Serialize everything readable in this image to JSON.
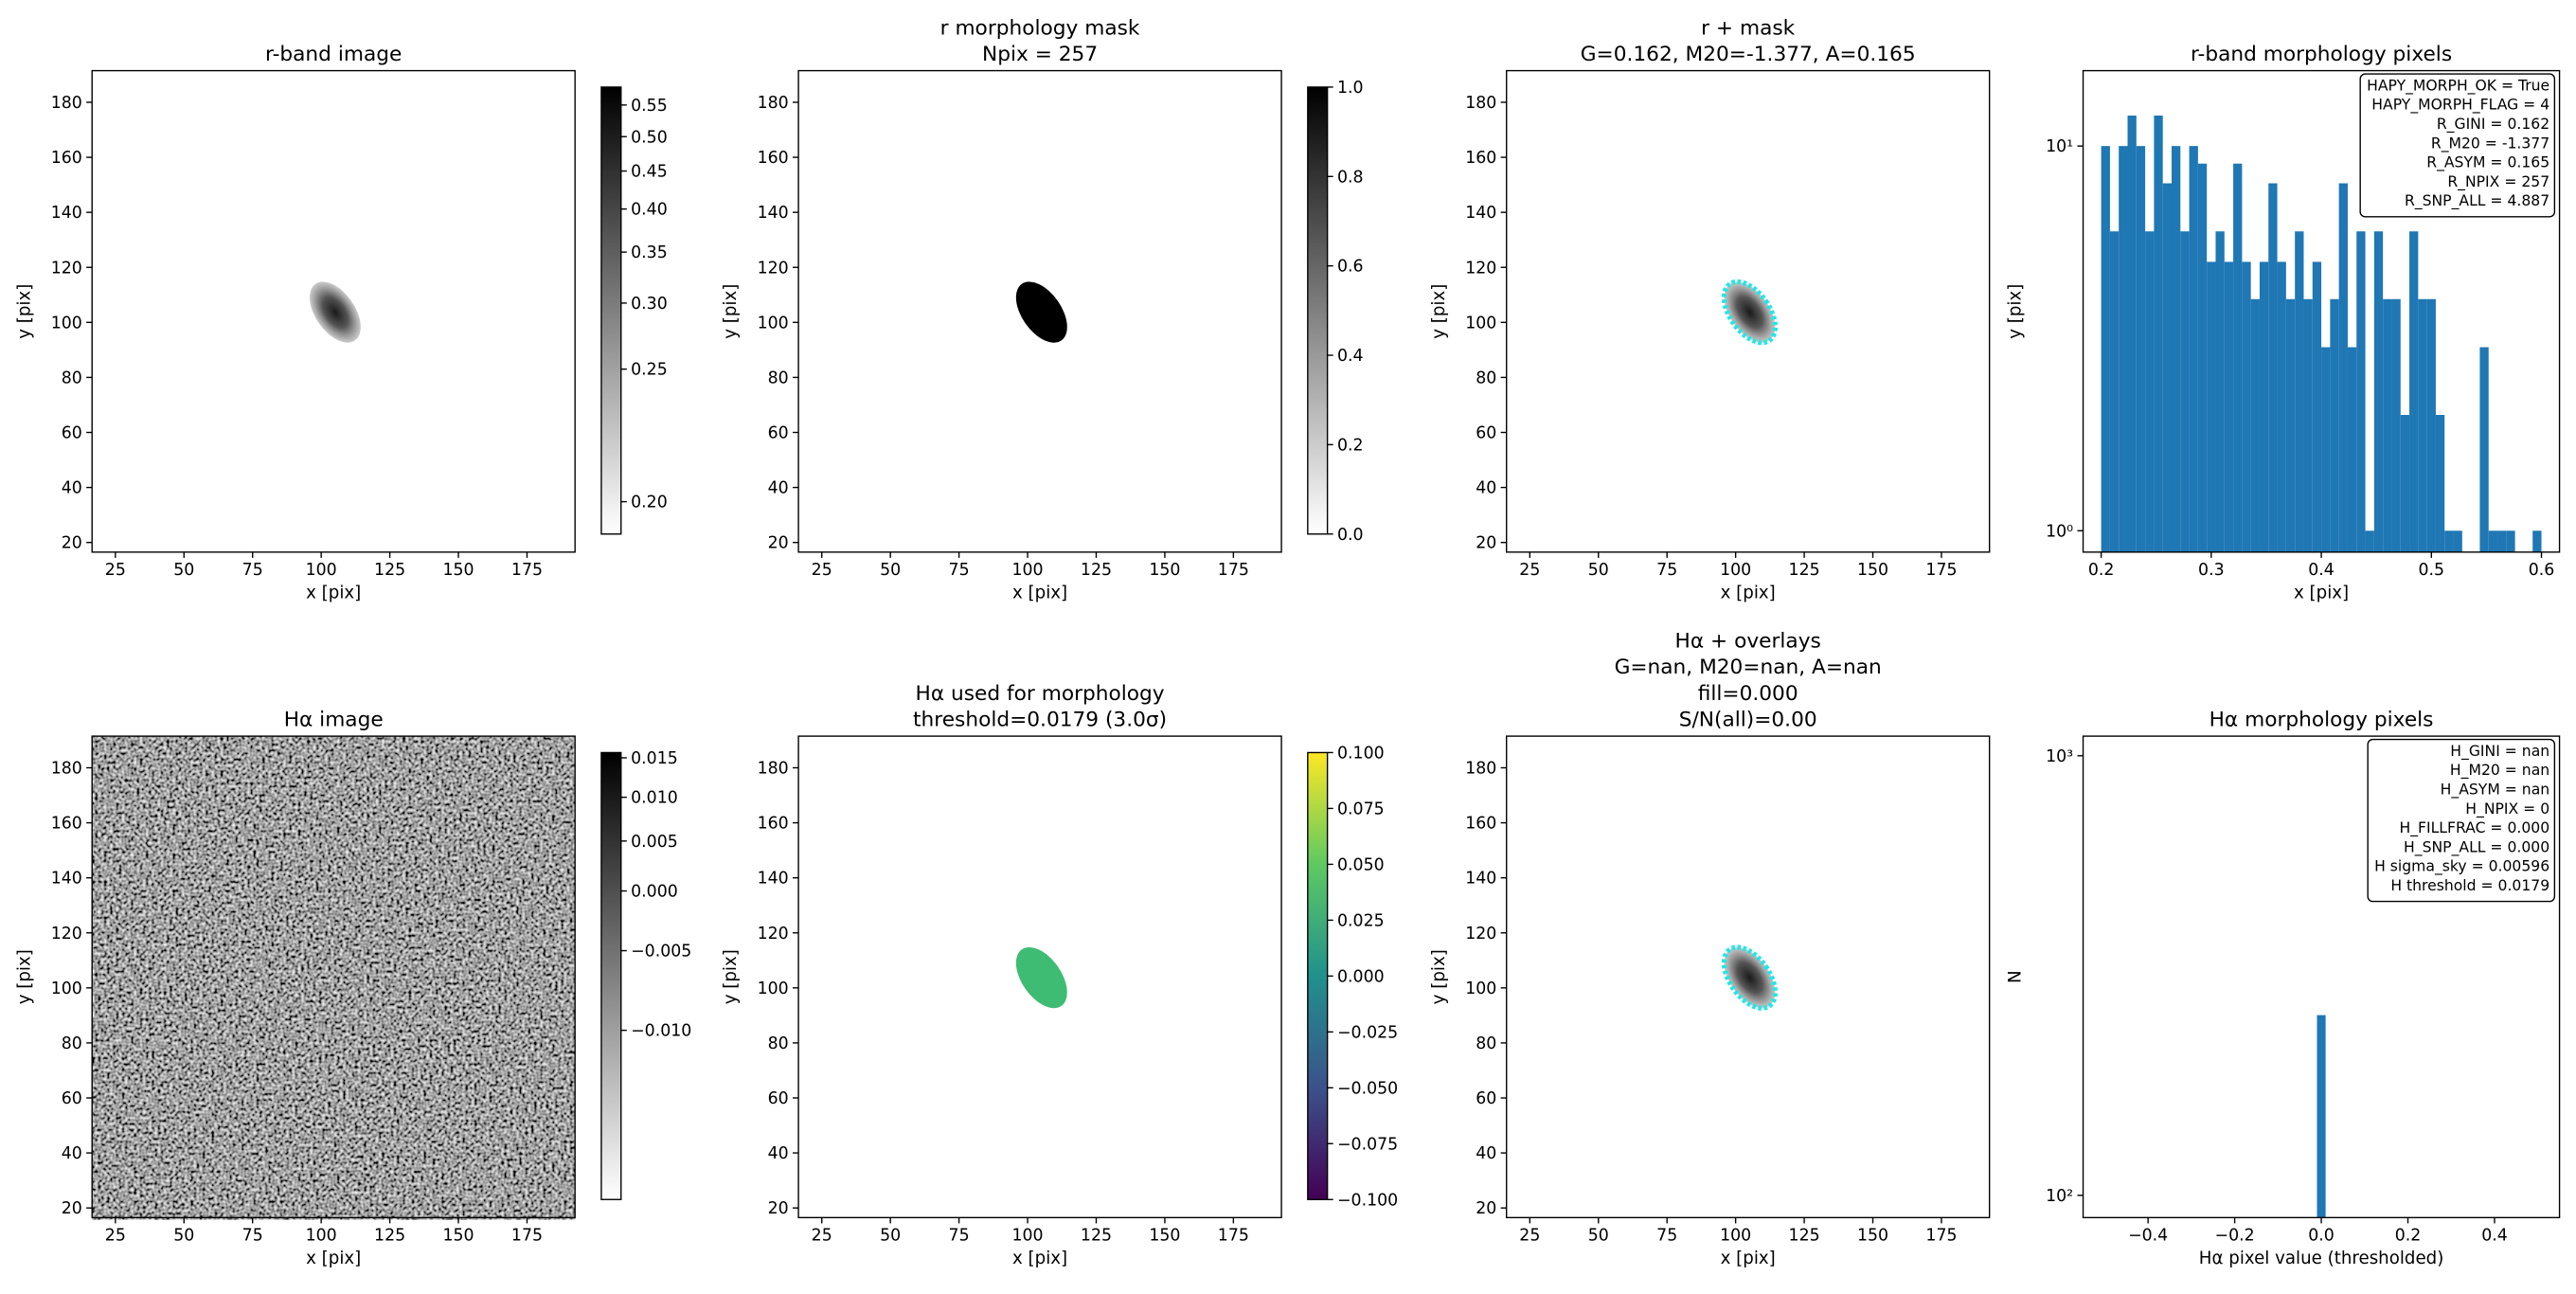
{
  "chart_data": [
    {
      "type": "image",
      "title": [
        "r-band image"
      ],
      "xlabel": "x [pix]",
      "ylabel": "y [pix]",
      "xlim": [
        16.5,
        192.5
      ],
      "ylim": [
        16.5,
        191.5
      ],
      "xticks": [
        25,
        50,
        75,
        100,
        125,
        150,
        175
      ],
      "yticks": [
        20,
        40,
        60,
        80,
        100,
        120,
        140,
        160,
        180
      ],
      "colorbar": {
        "cmap": "gray_r",
        "scale": "sqrt",
        "clim": [
          0.198,
          0.58
        ],
        "ticks": [
          {
            "value": 0.2,
            "label": "0.20"
          },
          0.25,
          {
            "value": 0.3,
            "label": "0.30"
          },
          0.35,
          {
            "value": 0.4,
            "label": "0.40"
          },
          0.45,
          {
            "value": 0.5,
            "label": "0.50"
          },
          0.55
        ]
      }
    },
    {
      "type": "image",
      "title": [
        "r morphology mask",
        "Npix = 257"
      ],
      "xlabel": "x [pix]",
      "ylabel": "y [pix]",
      "xlim": [
        16.5,
        192.5
      ],
      "ylim": [
        16.5,
        191.5
      ],
      "xticks": [
        25,
        50,
        75,
        100,
        125,
        150,
        175
      ],
      "yticks": [
        20,
        40,
        60,
        80,
        100,
        120,
        140,
        160,
        180
      ],
      "colorbar": {
        "cmap": "gray_r",
        "scale": "linear",
        "clim": [
          0,
          1
        ],
        "ticks": [
          {
            "value": 0,
            "label": "0.0"
          },
          0.2,
          0.4,
          0.6,
          0.8,
          {
            "value": 1,
            "label": "1.0"
          }
        ]
      }
    },
    {
      "type": "image",
      "title": [
        "r + mask",
        "G=0.162, M20=-1.377, A=0.165"
      ],
      "xlabel": "x [pix]",
      "ylabel": "y [pix]",
      "xlim": [
        16.5,
        192.5
      ],
      "ylim": [
        16.5,
        191.5
      ],
      "xticks": [
        25,
        50,
        75,
        100,
        125,
        150,
        175
      ],
      "yticks": [
        20,
        40,
        60,
        80,
        100,
        120,
        140,
        160,
        180
      ]
    },
    {
      "type": "histogram",
      "title": [
        "r-band morphology pixels"
      ],
      "xlabel": "x [pix]",
      "ylabel": "y [pix]",
      "color": "#1f77b4",
      "ylog": true,
      "bins": [
        0.2,
        0.208,
        0.216,
        0.224,
        0.232,
        0.24,
        0.248,
        0.256,
        0.264,
        0.272,
        0.28,
        0.288,
        0.296,
        0.304,
        0.312,
        0.32,
        0.328,
        0.336,
        0.344,
        0.352,
        0.36,
        0.368,
        0.376,
        0.384,
        0.392,
        0.4,
        0.408,
        0.416,
        0.424,
        0.432,
        0.44,
        0.448,
        0.456,
        0.464,
        0.472,
        0.48,
        0.488,
        0.496,
        0.504,
        0.512,
        0.52,
        0.528,
        0.536,
        0.544,
        0.552,
        0.56,
        0.568,
        0.576,
        0.584,
        0.592,
        0.6
      ],
      "values": [
        10,
        6,
        10,
        12,
        10,
        6,
        12,
        8,
        10,
        6,
        10,
        9,
        5,
        6,
        5,
        9,
        5,
        4,
        5,
        8,
        5,
        4,
        6,
        4,
        5,
        3,
        4,
        8,
        3,
        6,
        1,
        6,
        4,
        4,
        2,
        6,
        4,
        4,
        2,
        1,
        1,
        0,
        0,
        3,
        1,
        1,
        1,
        0,
        0,
        1
      ],
      "xlim": [
        0.1836,
        0.6164
      ],
      "ylim": [
        0.88,
        15.7
      ],
      "xticks": [
        0.2,
        0.3,
        0.4,
        0.5,
        0.6
      ],
      "yticks": [
        {
          "value": 1,
          "label": "10⁰"
        },
        {
          "value": 10,
          "label": "10¹"
        }
      ],
      "annotation": [
        "HAPY_MORPH_OK = True",
        "HAPY_MORPH_FLAG = 4",
        "R_GINI = 0.162",
        "R_M20 = -1.377",
        "R_ASYM = 0.165",
        "R_NPIX = 257",
        "R_SNP_ALL = 4.887"
      ]
    },
    {
      "type": "image",
      "title": [
        "Hα image"
      ],
      "xlabel": "x [pix]",
      "ylabel": "y [pix]",
      "xlim": [
        16.5,
        192.5
      ],
      "ylim": [
        16.5,
        191.5
      ],
      "xticks": [
        25,
        50,
        75,
        100,
        125,
        150,
        175
      ],
      "yticks": [
        20,
        40,
        60,
        80,
        100,
        120,
        140,
        160,
        180
      ],
      "colorbar": {
        "cmap": "gray_r",
        "scale": "sqrt",
        "clim": [
          -0.0143,
          0.0157
        ],
        "ticks": [
          0.015,
          {
            "value": 0.01,
            "label": "0.010"
          },
          0.005,
          {
            "value": 0,
            "label": "0.000"
          },
          {
            "value": -0.005,
            "label": "−0.005"
          },
          {
            "value": -0.01,
            "label": "−0.010"
          }
        ]
      }
    },
    {
      "type": "image",
      "title": [
        "Hα used for morphology",
        "threshold=0.0179 (3.0σ)"
      ],
      "xlabel": "x [pix]",
      "ylabel": "y [pix]",
      "xlim": [
        16.5,
        192.5
      ],
      "ylim": [
        16.5,
        191.5
      ],
      "xticks": [
        25,
        50,
        75,
        100,
        125,
        150,
        175
      ],
      "yticks": [
        20,
        40,
        60,
        80,
        100,
        120,
        140,
        160,
        180
      ],
      "colorbar": {
        "cmap": "viridis",
        "scale": "linear",
        "clim": [
          -0.1,
          0.1
        ],
        "ticks": [
          {
            "value": 0.1,
            "label": "0.100"
          },
          0.075,
          {
            "value": 0.05,
            "label": "0.050"
          },
          0.025,
          {
            "value": 0,
            "label": "0.000"
          },
          {
            "value": -0.025,
            "label": "−0.025"
          },
          {
            "value": -0.05,
            "label": "−0.050"
          },
          {
            "value": -0.075,
            "label": "−0.075"
          },
          {
            "value": -0.1,
            "label": "−0.100"
          }
        ]
      }
    },
    {
      "type": "image",
      "title": [
        "Hα + overlays",
        "G=nan, M20=nan, A=nan",
        "fill=0.000",
        "S/N(all)=0.00"
      ],
      "xlabel": "x [pix]",
      "ylabel": "y [pix]",
      "xlim": [
        16.5,
        192.5
      ],
      "ylim": [
        16.5,
        191.5
      ],
      "xticks": [
        25,
        50,
        75,
        100,
        125,
        150,
        175
      ],
      "yticks": [
        20,
        40,
        60,
        80,
        100,
        120,
        140,
        160,
        180
      ]
    },
    {
      "type": "histogram",
      "title": [
        "Hα morphology pixels"
      ],
      "xlabel": "Hα pixel value (thresholded)",
      "ylabel": "N",
      "color": "#1f77b4",
      "ylog": true,
      "bins": [
        -0.01,
        0.01
      ],
      "values": [
        257
      ],
      "xlim": [
        -0.55,
        0.55
      ],
      "ylim": [
        89,
        1108
      ],
      "xticks": [
        {
          "value": -0.4,
          "label": "−0.4"
        },
        {
          "value": -0.2,
          "label": "−0.2"
        },
        {
          "value": 0,
          "label": "0.0"
        },
        0.2,
        0.4
      ],
      "yticks": [
        {
          "value": 100,
          "label": "10²"
        },
        {
          "value": 1000,
          "label": "10³"
        }
      ],
      "annotation": [
        "H_GINI = nan",
        "H_M20 = nan",
        "H_ASYM = nan",
        "H_NPIX = 0",
        "H_FILLFRAC = 0.000",
        "H_SNP_ALL = 0.000",
        "H sigma_sky = 0.00596",
        "H threshold = 0.0179"
      ]
    }
  ]
}
